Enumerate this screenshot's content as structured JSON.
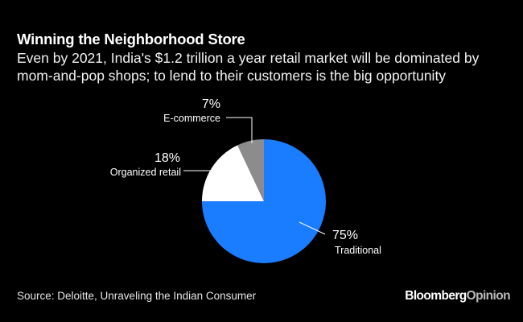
{
  "header": {
    "title": "Winning the Neighborhood Store",
    "subtitle": "Even by 2021, India's $1.2 trillion a year retail market will be dominated by mom-and-pop shops; to lend to their customers is the big opportunity"
  },
  "footer": {
    "source": "Source: Deloitte, Unraveling the Indian Consumer",
    "brand_primary": "Bloomberg",
    "brand_secondary": "Opinion"
  },
  "colors": {
    "background": "#000000",
    "traditional": "#1a7cff",
    "organized_retail": "#ffffff",
    "e_commerce": "#8c8c8c",
    "leader_line": "#ffffff"
  },
  "chart_data": {
    "type": "pie",
    "title": "Winning the Neighborhood Store",
    "slices": [
      {
        "name": "Traditional",
        "value": 75,
        "label": "75%",
        "color": "#1a7cff"
      },
      {
        "name": "Organized retail",
        "value": 18,
        "label": "18%",
        "color": "#ffffff"
      },
      {
        "name": "E-commerce",
        "value": 7,
        "label": "7%",
        "color": "#8c8c8c"
      }
    ],
    "start_angle": "12 o'clock",
    "direction": "clockwise"
  }
}
